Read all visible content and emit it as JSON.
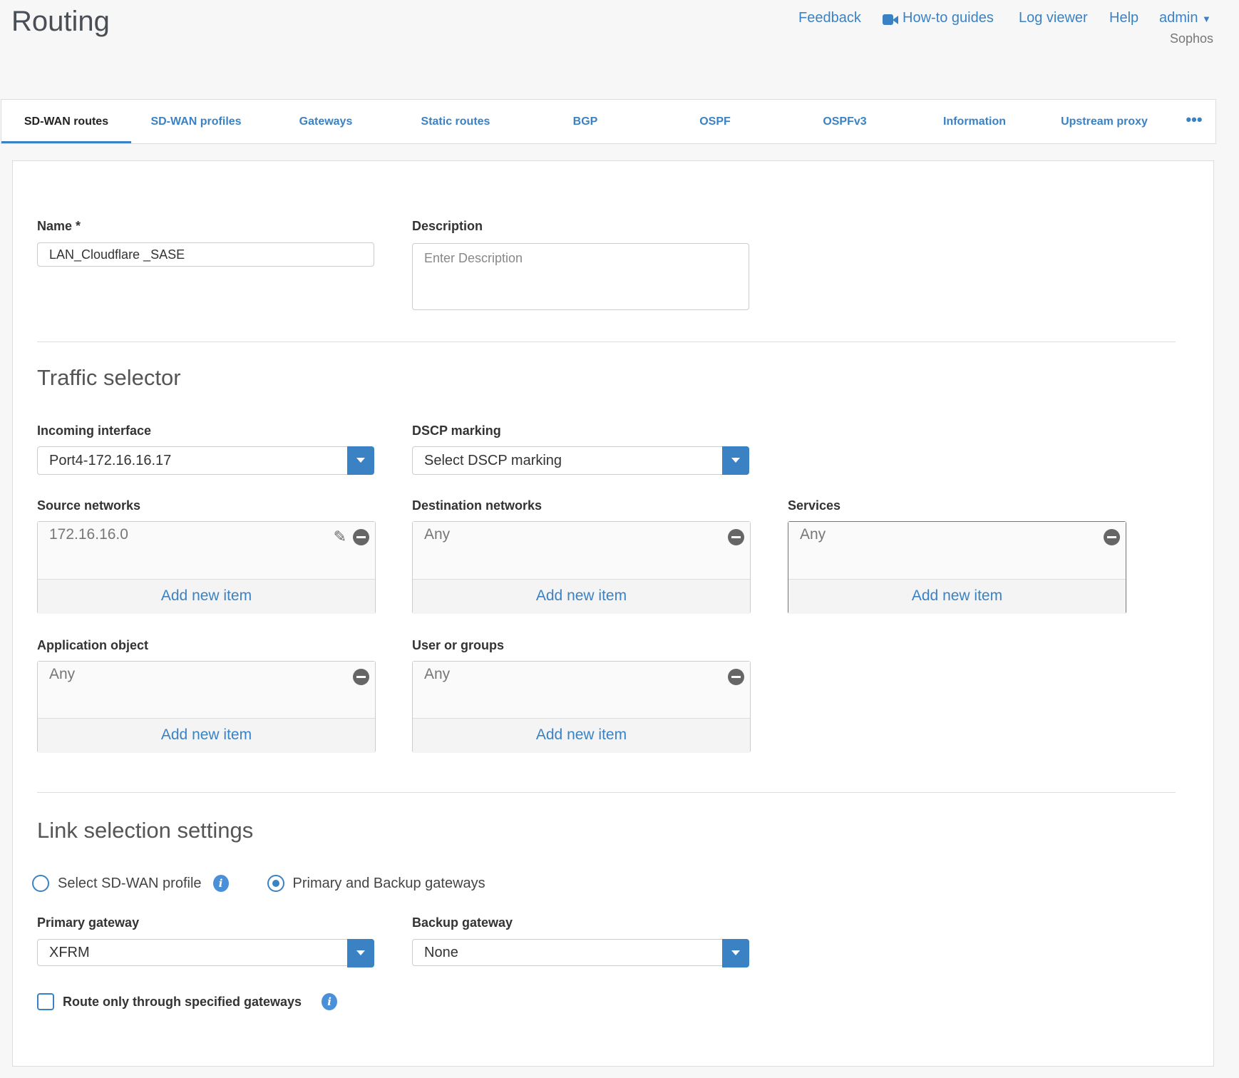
{
  "header": {
    "title": "Routing",
    "links": [
      "Feedback",
      "How-to guides",
      "Log viewer",
      "Help"
    ],
    "user": "admin",
    "org": "Sophos"
  },
  "tabs": [
    "SD-WAN routes",
    "SD-WAN profiles",
    "Gateways",
    "Static routes",
    "BGP",
    "OSPF",
    "OSPFv3",
    "Information",
    "Upstream proxy"
  ],
  "active_tab": "SD-WAN routes",
  "form": {
    "name_label": "Name *",
    "name_value": "LAN_Cloudflare _SASE",
    "description_label": "Description",
    "description_placeholder": "Enter Description",
    "traffic_heading": "Traffic selector",
    "incoming_label": "Incoming interface",
    "incoming_value": "Port4-172.16.16.17",
    "dscp_label": "DSCP marking",
    "dscp_value": "Select DSCP marking",
    "source_label": "Source networks",
    "source_item": "172.16.16.0",
    "dest_label": "Destination networks",
    "dest_item": "Any",
    "services_label": "Services",
    "services_item": "Any",
    "app_label": "Application object",
    "app_item": "Any",
    "users_label": "User or groups",
    "users_item": "Any",
    "add_new": "Add new item",
    "link_heading": "Link selection settings",
    "radio_profile": "Select SD-WAN profile",
    "radio_gateways": "Primary and Backup gateways",
    "radio_selected": "Primary and Backup gateways",
    "primary_label": "Primary gateway",
    "primary_value": "XFRM",
    "backup_label": "Backup gateway",
    "backup_value": "None",
    "route_only_label": "Route only through specified gateways",
    "route_only_checked": false
  },
  "colors": {
    "accent": "#3b82c4"
  }
}
